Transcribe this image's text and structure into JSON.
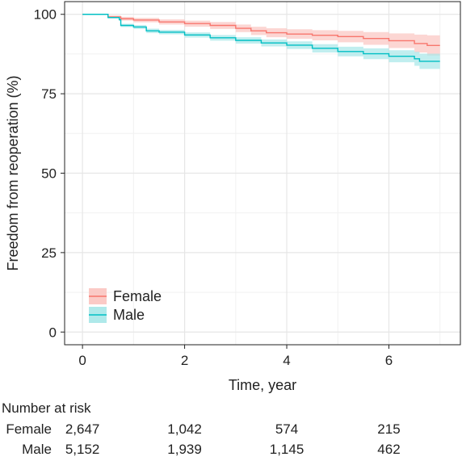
{
  "chart_data": {
    "type": "line",
    "subtype": "kaplan-meier",
    "title": "",
    "xlabel": "Time, year",
    "ylabel": "Freedom from reoperation (%)",
    "xlim": [
      -0.35,
      7.4
    ],
    "ylim": [
      -4,
      104
    ],
    "xticks": [
      0,
      2,
      4,
      6
    ],
    "yticks": [
      0,
      25,
      50,
      75,
      100
    ],
    "grid": true,
    "legend": "bottom-left",
    "series": [
      {
        "name": "Female",
        "color": "#f8766d",
        "band_color": "#fbc4c0",
        "points": [
          [
            0,
            100
          ],
          [
            0.5,
            99.2
          ],
          [
            0.75,
            98.6
          ],
          [
            1.0,
            98.2
          ],
          [
            1.5,
            97.6
          ],
          [
            2.0,
            97.1
          ],
          [
            2.5,
            96.5
          ],
          [
            3.0,
            95.6
          ],
          [
            3.3,
            94.8
          ],
          [
            3.6,
            94.2
          ],
          [
            4.0,
            93.8
          ],
          [
            4.5,
            93.4
          ],
          [
            5.0,
            93.0
          ],
          [
            5.5,
            92.4
          ],
          [
            6.0,
            91.7
          ],
          [
            6.5,
            90.8
          ],
          [
            6.75,
            90.2
          ],
          [
            7.0,
            90.2
          ]
        ],
        "lower": [
          [
            0,
            100
          ],
          [
            0.5,
            98.8
          ],
          [
            0.75,
            98.0
          ],
          [
            1.0,
            97.5
          ],
          [
            1.5,
            96.8
          ],
          [
            2.0,
            96.1
          ],
          [
            2.5,
            95.4
          ],
          [
            3.0,
            94.4
          ],
          [
            3.3,
            93.5
          ],
          [
            3.6,
            92.8
          ],
          [
            4.0,
            92.3
          ],
          [
            4.5,
            91.8
          ],
          [
            5.0,
            91.2
          ],
          [
            5.5,
            90.4
          ],
          [
            6.0,
            89.4
          ],
          [
            6.5,
            88.0
          ],
          [
            6.75,
            87.0
          ],
          [
            7.0,
            86.8
          ]
        ],
        "upper": [
          [
            0,
            100
          ],
          [
            0.5,
            99.6
          ],
          [
            0.75,
            99.2
          ],
          [
            1.0,
            98.9
          ],
          [
            1.5,
            98.4
          ],
          [
            2.0,
            98.0
          ],
          [
            2.5,
            97.6
          ],
          [
            3.0,
            96.8
          ],
          [
            3.3,
            96.1
          ],
          [
            3.6,
            95.6
          ],
          [
            4.0,
            95.3
          ],
          [
            4.5,
            95.0
          ],
          [
            5.0,
            94.8
          ],
          [
            5.5,
            94.4
          ],
          [
            6.0,
            94.0
          ],
          [
            6.5,
            93.6
          ],
          [
            6.75,
            93.4
          ],
          [
            7.0,
            93.4
          ]
        ]
      },
      {
        "name": "Male",
        "color": "#00bfc4",
        "band_color": "#a6e7e8",
        "points": [
          [
            0,
            100
          ],
          [
            0.5,
            99.0
          ],
          [
            0.72,
            98.3
          ],
          [
            0.75,
            96.5
          ],
          [
            1.0,
            96.0
          ],
          [
            1.25,
            94.8
          ],
          [
            1.5,
            94.4
          ],
          [
            2.0,
            93.5
          ],
          [
            2.5,
            92.6
          ],
          [
            3.0,
            91.8
          ],
          [
            3.5,
            91.0
          ],
          [
            4.0,
            90.3
          ],
          [
            4.5,
            89.3
          ],
          [
            5.0,
            88.3
          ],
          [
            5.5,
            87.6
          ],
          [
            6.0,
            86.8
          ],
          [
            6.5,
            86.0
          ],
          [
            6.6,
            85.2
          ],
          [
            7.0,
            85.2
          ]
        ],
        "lower": [
          [
            0,
            100
          ],
          [
            0.5,
            98.7
          ],
          [
            0.72,
            97.9
          ],
          [
            0.75,
            96.0
          ],
          [
            1.0,
            95.4
          ],
          [
            1.25,
            94.1
          ],
          [
            1.5,
            93.7
          ],
          [
            2.0,
            92.7
          ],
          [
            2.5,
            91.7
          ],
          [
            3.0,
            90.8
          ],
          [
            3.5,
            89.9
          ],
          [
            4.0,
            89.1
          ],
          [
            4.5,
            88.0
          ],
          [
            5.0,
            86.8
          ],
          [
            5.5,
            85.9
          ],
          [
            6.0,
            84.9
          ],
          [
            6.5,
            83.8
          ],
          [
            6.6,
            82.8
          ],
          [
            7.0,
            82.6
          ]
        ],
        "upper": [
          [
            0,
            100
          ],
          [
            0.5,
            99.3
          ],
          [
            0.72,
            98.7
          ],
          [
            0.75,
            97.0
          ],
          [
            1.0,
            96.6
          ],
          [
            1.25,
            95.5
          ],
          [
            1.5,
            95.1
          ],
          [
            2.0,
            94.3
          ],
          [
            2.5,
            93.5
          ],
          [
            3.0,
            92.8
          ],
          [
            3.5,
            92.1
          ],
          [
            4.0,
            91.5
          ],
          [
            4.5,
            90.6
          ],
          [
            5.0,
            89.8
          ],
          [
            5.5,
            89.3
          ],
          [
            6.0,
            88.7
          ],
          [
            6.5,
            88.2
          ],
          [
            6.6,
            87.6
          ],
          [
            7.0,
            87.8
          ]
        ]
      }
    ],
    "risk_table": {
      "title": "Number at risk",
      "times": [
        0,
        2,
        4,
        6
      ],
      "rows": [
        {
          "label": "Female",
          "values": [
            "2,647",
            "1,042",
            "574",
            "215"
          ]
        },
        {
          "label": "Male",
          "values": [
            "5,152",
            "1,939",
            "1,145",
            "462"
          ]
        }
      ]
    }
  }
}
